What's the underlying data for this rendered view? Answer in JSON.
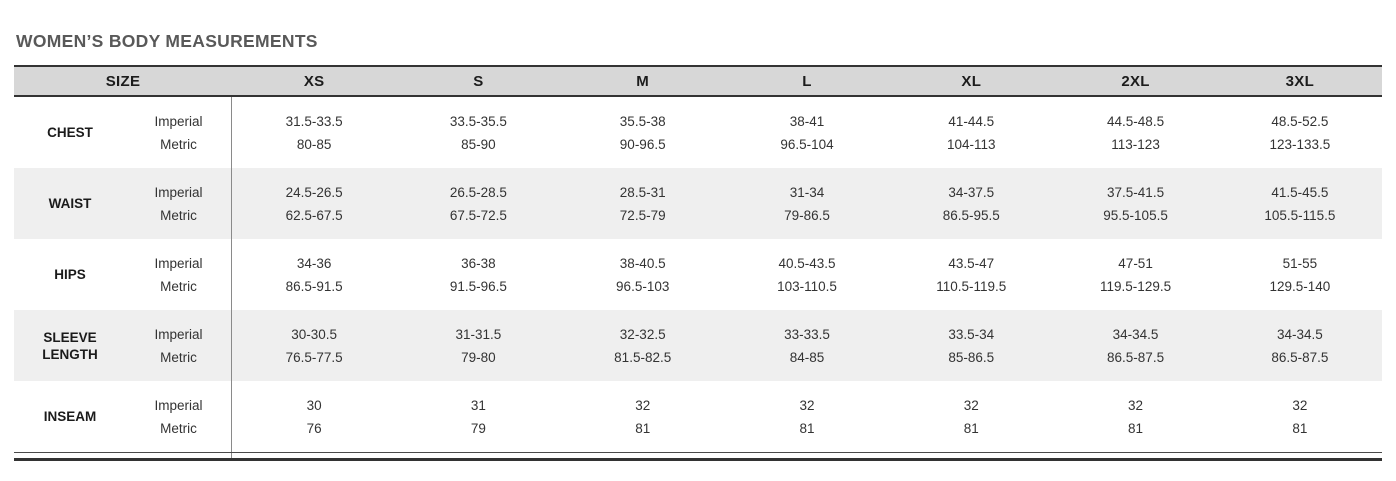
{
  "page_title": "WOMEN’S BODY MEASUREMENTS",
  "table": {
    "header": {
      "size_label": "SIZE",
      "size_columns": [
        "XS",
        "S",
        "M",
        "L",
        "XL",
        "2XL",
        "3XL"
      ]
    },
    "unit_rows": [
      "Imperial",
      "Metric"
    ],
    "measurements": [
      {
        "label": "CHEST",
        "imperial": [
          "31.5-33.5",
          "33.5-35.5",
          "35.5-38",
          "38-41",
          "41-44.5",
          "44.5-48.5",
          "48.5-52.5"
        ],
        "metric": [
          "80-85",
          "85-90",
          "90-96.5",
          "96.5-104",
          "104-113",
          "113-123",
          "123-133.5"
        ]
      },
      {
        "label": "WAIST",
        "imperial": [
          "24.5-26.5",
          "26.5-28.5",
          "28.5-31",
          "31-34",
          "34-37.5",
          "37.5-41.5",
          "41.5-45.5"
        ],
        "metric": [
          "62.5-67.5",
          "67.5-72.5",
          "72.5-79",
          "79-86.5",
          "86.5-95.5",
          "95.5-105.5",
          "105.5-115.5"
        ]
      },
      {
        "label": "HIPS",
        "imperial": [
          "34-36",
          "36-38",
          "38-40.5",
          "40.5-43.5",
          "43.5-47",
          "47-51",
          "51-55"
        ],
        "metric": [
          "86.5-91.5",
          "91.5-96.5",
          "96.5-103",
          "103-110.5",
          "110.5-119.5",
          "119.5-129.5",
          "129.5-140"
        ]
      },
      {
        "label": "SLEEVE LENGTH",
        "imperial": [
          "30-30.5",
          "31-31.5",
          "32-32.5",
          "33-33.5",
          "33.5-34",
          "34-34.5",
          "34-34.5"
        ],
        "metric": [
          "76.5-77.5",
          "79-80",
          "81.5-82.5",
          "84-85",
          "85-86.5",
          "86.5-87.5",
          "86.5-87.5"
        ]
      },
      {
        "label": "INSEAM",
        "imperial": [
          "30",
          "31",
          "32",
          "32",
          "32",
          "32",
          "32"
        ],
        "metric": [
          "76",
          "79",
          "81",
          "81",
          "81",
          "81",
          "81"
        ]
      }
    ]
  },
  "colors": {
    "header_bg": "#d7d7d7",
    "alt_row_bg": "#efefef",
    "rule_dark": "#333333",
    "divider": "#8a8a8a",
    "text": "#333333",
    "title": "#595959"
  }
}
